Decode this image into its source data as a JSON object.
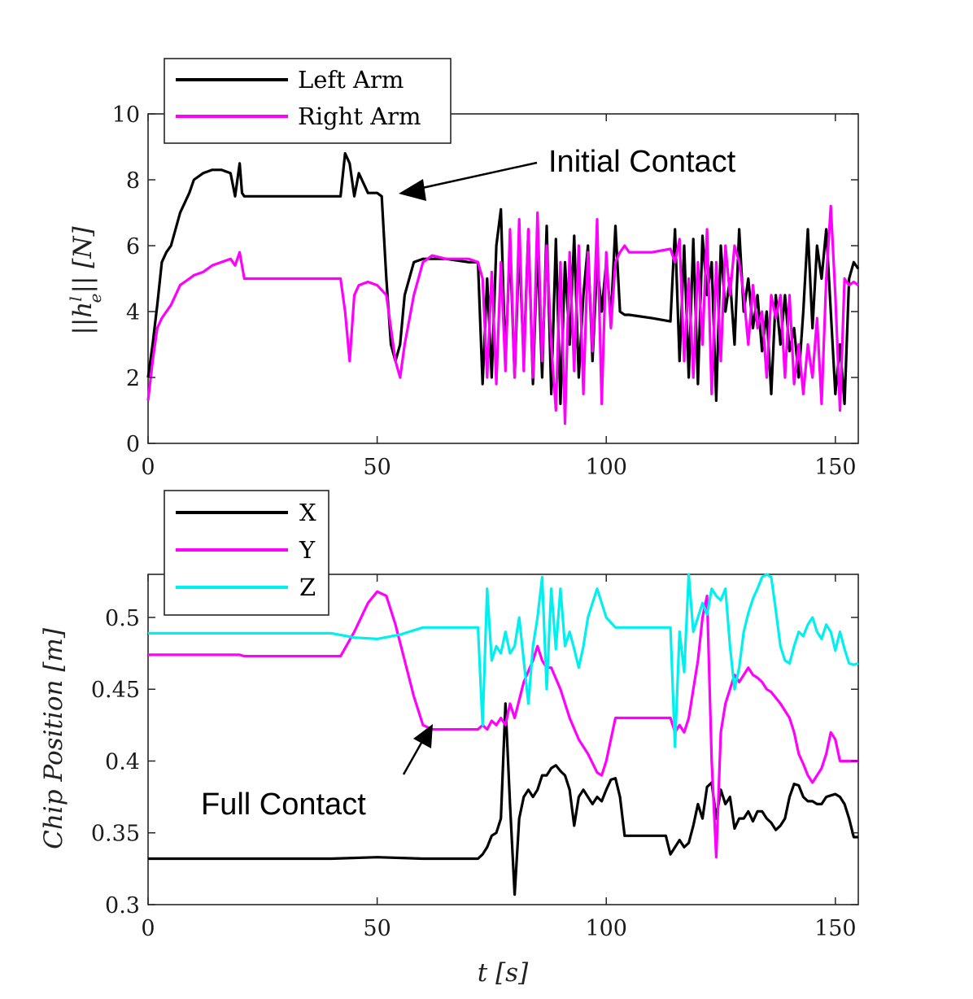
{
  "chart_data": [
    {
      "type": "line",
      "ylabel": "||h_e^l|| [N]",
      "xlim": [
        0,
        155
      ],
      "ylim": [
        0,
        10
      ],
      "xticks": [
        0,
        50,
        100,
        150
      ],
      "yticks": [
        0,
        2,
        4,
        6,
        8,
        10
      ],
      "xtick_labels": [
        "0",
        "50",
        "100",
        "150"
      ],
      "ytick_labels": [
        "0",
        "2",
        "4",
        "6",
        "8",
        "10"
      ],
      "legend_position": "top-left, above axes",
      "grid": false,
      "annotation": {
        "text": "Initial Contact",
        "x": 54,
        "y": 7.6
      },
      "series": [
        {
          "name": "Left Arm",
          "color": "#000000",
          "x": [
            0,
            1,
            2,
            3,
            4,
            5,
            7,
            9,
            10,
            12,
            14,
            16,
            18,
            19,
            20,
            20.5,
            21,
            25,
            30,
            35,
            40,
            42,
            43,
            44,
            45,
            46,
            48,
            50,
            51,
            52,
            53,
            54,
            55,
            56,
            58,
            60,
            62,
            65,
            70,
            72,
            73,
            74,
            75,
            76,
            77,
            78,
            79,
            80,
            81,
            82,
            83,
            84,
            85,
            86,
            87,
            88,
            89,
            90,
            91,
            92,
            93,
            94,
            95,
            96,
            97,
            98,
            99,
            100,
            101,
            102,
            103,
            104,
            105,
            110,
            114,
            115,
            116,
            117,
            118,
            119,
            120,
            121,
            122,
            123,
            124,
            125,
            126,
            127,
            128,
            129,
            130,
            131,
            132,
            133,
            134,
            135,
            136,
            137,
            138,
            139,
            140,
            141,
            142,
            143,
            144,
            145,
            146,
            147,
            148,
            149,
            150,
            151,
            152,
            153,
            154,
            155
          ],
          "y": [
            2.0,
            3.0,
            4.2,
            5.5,
            5.8,
            6.0,
            7.0,
            7.6,
            8.0,
            8.2,
            8.3,
            8.3,
            8.2,
            7.5,
            8.5,
            7.6,
            7.5,
            7.5,
            7.5,
            7.5,
            7.5,
            7.5,
            8.8,
            8.5,
            7.5,
            8.2,
            7.6,
            7.6,
            7.5,
            5.0,
            3.0,
            2.5,
            3.0,
            4.5,
            5.5,
            5.6,
            5.6,
            5.6,
            5.5,
            5.5,
            1.8,
            5.0,
            2.0,
            6.0,
            7.1,
            2.5,
            6.0,
            2.0,
            6.0,
            2.5,
            6.5,
            1.8,
            6.0,
            2.0,
            6.6,
            1.5,
            6.2,
            1.2,
            5.5,
            3.0,
            6.3,
            2.0,
            4.5,
            6.0,
            2.5,
            5.5,
            4.0,
            5.5,
            3.8,
            6.6,
            4.0,
            3.9,
            3.9,
            3.8,
            3.7,
            6.5,
            2.5,
            6.0,
            2.0,
            6.2,
            1.8,
            6.3,
            4.5,
            5.5,
            1.3,
            6.0,
            4.0,
            5.0,
            3.0,
            6.5,
            4.0,
            5.0,
            3.5,
            4.5,
            2.8,
            4.0,
            1.5,
            4.5,
            3.0,
            4.5,
            2.8,
            3.5,
            2.0,
            4.0,
            6.5,
            3.5,
            6.0,
            5.0,
            6.5,
            4.0,
            1.5,
            3.0,
            1.2,
            5.0,
            5.5,
            5.3
          ]
        },
        {
          "name": "Right Arm",
          "color": "#ff00ff",
          "x": [
            0,
            1,
            2,
            3,
            5,
            7,
            9,
            10,
            12,
            14,
            16,
            18,
            19,
            20,
            21,
            25,
            30,
            35,
            40,
            42,
            43,
            44,
            45,
            46,
            48,
            50,
            52,
            53,
            54,
            55,
            56,
            58,
            60,
            62,
            65,
            70,
            72,
            73,
            74,
            75,
            76,
            77,
            78,
            79,
            80,
            81,
            82,
            83,
            84,
            85,
            86,
            87,
            88,
            89,
            90,
            91,
            92,
            93,
            94,
            95,
            96,
            97,
            98,
            99,
            100,
            101,
            102,
            103,
            104,
            105,
            110,
            114,
            115,
            116,
            117,
            118,
            119,
            120,
            121,
            122,
            123,
            124,
            125,
            126,
            127,
            128,
            129,
            130,
            131,
            132,
            133,
            134,
            135,
            136,
            137,
            138,
            139,
            140,
            141,
            142,
            143,
            144,
            145,
            146,
            147,
            148,
            149,
            150,
            151,
            152,
            153,
            154,
            155
          ],
          "y": [
            1.3,
            2.5,
            3.5,
            3.8,
            4.2,
            4.8,
            5.0,
            5.1,
            5.2,
            5.4,
            5.5,
            5.6,
            5.4,
            5.8,
            5.0,
            5.0,
            5.0,
            5.0,
            5.0,
            5.0,
            4.0,
            2.5,
            4.5,
            4.8,
            4.9,
            4.8,
            4.5,
            3.5,
            2.5,
            2.0,
            3.0,
            4.5,
            5.5,
            5.7,
            5.6,
            5.6,
            5.5,
            5.0,
            2.0,
            5.2,
            1.8,
            5.5,
            2.2,
            6.5,
            2.0,
            6.8,
            2.2,
            6.5,
            2.0,
            7.0,
            2.5,
            6.0,
            3.0,
            1.0,
            5.5,
            0.6,
            5.8,
            2.2,
            6.0,
            1.5,
            5.8,
            2.8,
            6.8,
            1.2,
            5.8,
            3.5,
            5.5,
            5.8,
            6.0,
            5.8,
            5.8,
            5.9,
            5.5,
            6.2,
            2.5,
            5.0,
            2.0,
            5.5,
            3.0,
            6.5,
            1.5,
            5.5,
            2.5,
            6.0,
            4.5,
            6.0,
            5.5,
            4.5,
            3.0,
            4.8,
            3.5,
            4.0,
            2.0,
            4.5,
            3.8,
            4.5,
            2.0,
            4.5,
            1.8,
            3.0,
            1.5,
            3.0,
            2.0,
            3.8,
            1.2,
            5.0,
            7.2,
            4.5,
            1.0,
            5.0,
            4.8,
            4.9,
            4.8
          ]
        }
      ]
    },
    {
      "type": "line",
      "xlabel": "t [s]",
      "ylabel": "Chip Position [m]",
      "xlim": [
        0,
        155
      ],
      "ylim": [
        0.3,
        0.53
      ],
      "xticks": [
        0,
        50,
        100,
        150
      ],
      "yticks": [
        0.3,
        0.35,
        0.4,
        0.45,
        0.5
      ],
      "xtick_labels": [
        "0",
        "50",
        "100",
        "150"
      ],
      "ytick_labels": [
        "0.3",
        "0.35",
        "0.4",
        "0.45",
        "0.5"
      ],
      "legend_position": "top-left, above axes",
      "grid": false,
      "annotation": {
        "text": "Full Contact",
        "x": 62,
        "y": 0.422
      },
      "series": [
        {
          "name": "X",
          "color": "#000000",
          "x": [
            0,
            20,
            40,
            50,
            60,
            70,
            72,
            73,
            74,
            75,
            76,
            77,
            78,
            79,
            80,
            81,
            82,
            83,
            84,
            85,
            86,
            87,
            88,
            89,
            90,
            91,
            92,
            93,
            94,
            95,
            96,
            97,
            98,
            99,
            100,
            101,
            102,
            103,
            104,
            105,
            110,
            113,
            114,
            115,
            116,
            117,
            118,
            119,
            120,
            121,
            122,
            123,
            124,
            125,
            126,
            127,
            128,
            129,
            130,
            131,
            132,
            133,
            134,
            135,
            136,
            137,
            138,
            139,
            140,
            141,
            142,
            143,
            144,
            145,
            146,
            147,
            148,
            149,
            150,
            151,
            152,
            153,
            154,
            155
          ],
          "y": [
            0.332,
            0.332,
            0.332,
            0.333,
            0.332,
            0.332,
            0.332,
            0.335,
            0.34,
            0.348,
            0.35,
            0.36,
            0.44,
            0.37,
            0.307,
            0.36,
            0.375,
            0.38,
            0.375,
            0.38,
            0.39,
            0.39,
            0.395,
            0.397,
            0.393,
            0.39,
            0.38,
            0.355,
            0.375,
            0.38,
            0.375,
            0.37,
            0.375,
            0.372,
            0.38,
            0.387,
            0.388,
            0.375,
            0.348,
            0.348,
            0.348,
            0.348,
            0.335,
            0.34,
            0.345,
            0.34,
            0.343,
            0.355,
            0.37,
            0.36,
            0.382,
            0.385,
            0.36,
            0.38,
            0.37,
            0.375,
            0.353,
            0.36,
            0.36,
            0.365,
            0.358,
            0.365,
            0.365,
            0.36,
            0.357,
            0.352,
            0.355,
            0.36,
            0.375,
            0.384,
            0.383,
            0.375,
            0.372,
            0.372,
            0.37,
            0.37,
            0.375,
            0.376,
            0.377,
            0.375,
            0.37,
            0.36,
            0.347,
            0.347
          ]
        },
        {
          "name": "Y",
          "color": "#ff00ff",
          "x": [
            0,
            20,
            21,
            30,
            40,
            42,
            45,
            48,
            50,
            52,
            54,
            56,
            58,
            60,
            62,
            65,
            70,
            72,
            73,
            74,
            75,
            76,
            77,
            78,
            79,
            80,
            82,
            84,
            85,
            86,
            87,
            88,
            90,
            92,
            94,
            96,
            98,
            99,
            100,
            102,
            105,
            110,
            114,
            115,
            116,
            117,
            118,
            119,
            120,
            121,
            122,
            123,
            124,
            125,
            126,
            127,
            128,
            129,
            130,
            131,
            132,
            133,
            134,
            135,
            136,
            138,
            140,
            141,
            142,
            143,
            144,
            145,
            146,
            147,
            148,
            149,
            150,
            151,
            152,
            153,
            154,
            155
          ],
          "y": [
            0.474,
            0.474,
            0.473,
            0.473,
            0.473,
            0.473,
            0.49,
            0.51,
            0.518,
            0.515,
            0.495,
            0.47,
            0.445,
            0.425,
            0.422,
            0.422,
            0.422,
            0.422,
            0.425,
            0.422,
            0.428,
            0.425,
            0.43,
            0.425,
            0.44,
            0.43,
            0.455,
            0.47,
            0.48,
            0.47,
            0.465,
            0.465,
            0.45,
            0.43,
            0.415,
            0.405,
            0.392,
            0.39,
            0.4,
            0.43,
            0.43,
            0.43,
            0.43,
            0.42,
            0.425,
            0.42,
            0.43,
            0.45,
            0.47,
            0.5,
            0.515,
            0.4,
            0.333,
            0.42,
            0.44,
            0.45,
            0.46,
            0.455,
            0.46,
            0.465,
            0.46,
            0.458,
            0.455,
            0.45,
            0.448,
            0.44,
            0.43,
            0.42,
            0.405,
            0.398,
            0.39,
            0.385,
            0.39,
            0.395,
            0.405,
            0.42,
            0.415,
            0.4,
            0.4,
            0.4,
            0.4,
            0.4
          ]
        },
        {
          "name": "Z",
          "color": "#00f0f0",
          "x": [
            0,
            20,
            40,
            45,
            50,
            55,
            60,
            65,
            70,
            72,
            73,
            74,
            75,
            76,
            77,
            78,
            79,
            80,
            81,
            82,
            83,
            84,
            85,
            86,
            87,
            88,
            89,
            90,
            91,
            92,
            93,
            94,
            95,
            96,
            97,
            98,
            99,
            100,
            102,
            105,
            110,
            114,
            115,
            116,
            117,
            118,
            119,
            120,
            121,
            122,
            123,
            124,
            125,
            126,
            127,
            128,
            129,
            130,
            131,
            132,
            133,
            134,
            135,
            136,
            137,
            138,
            139,
            140,
            141,
            142,
            143,
            144,
            145,
            146,
            147,
            148,
            149,
            150,
            151,
            152,
            153,
            154,
            155
          ],
          "y": [
            0.489,
            0.489,
            0.489,
            0.486,
            0.485,
            0.488,
            0.493,
            0.493,
            0.493,
            0.493,
            0.425,
            0.52,
            0.47,
            0.48,
            0.475,
            0.49,
            0.475,
            0.48,
            0.5,
            0.47,
            0.44,
            0.48,
            0.5,
            0.528,
            0.45,
            0.52,
            0.478,
            0.52,
            0.48,
            0.49,
            0.478,
            0.465,
            0.48,
            0.5,
            0.51,
            0.52,
            0.51,
            0.5,
            0.493,
            0.493,
            0.493,
            0.493,
            0.41,
            0.49,
            0.462,
            0.53,
            0.49,
            0.5,
            0.51,
            0.502,
            0.52,
            0.515,
            0.512,
            0.52,
            0.48,
            0.45,
            0.465,
            0.49,
            0.503,
            0.513,
            0.52,
            0.528,
            0.53,
            0.528,
            0.505,
            0.48,
            0.47,
            0.468,
            0.48,
            0.49,
            0.487,
            0.495,
            0.5,
            0.49,
            0.485,
            0.495,
            0.49,
            0.477,
            0.49,
            0.478,
            0.468,
            0.467,
            0.468
          ]
        }
      ]
    }
  ]
}
